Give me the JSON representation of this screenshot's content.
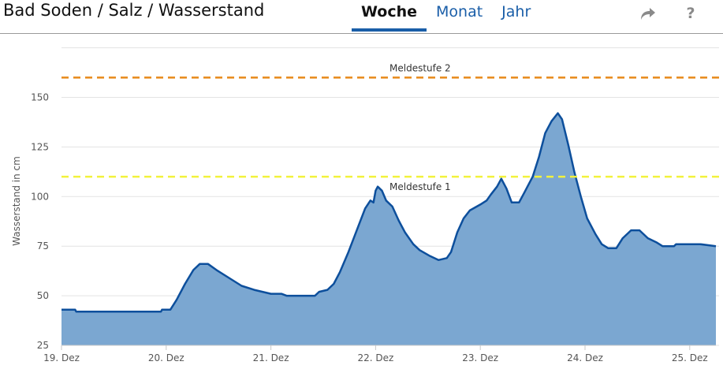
{
  "header": {
    "title": "Bad Soden / Salz / Wasserstand",
    "tabs": [
      {
        "label": "Woche",
        "active": true
      },
      {
        "label": "Monat",
        "active": false
      },
      {
        "label": "Jahr",
        "active": false
      }
    ],
    "share_icon": "share-arrow-icon",
    "help_label": "?"
  },
  "colors": {
    "accent": "#1a5ea8",
    "area_fill": "#7ba7d1",
    "line": "#0d4f9c",
    "meldestufe_1": "#f2f23c",
    "meldestufe_2": "#e88a1a"
  },
  "chart_data": {
    "type": "area",
    "title": "",
    "xlabel": "",
    "ylabel": "Wasserstand in cm",
    "ylim": [
      25,
      165
    ],
    "yticks": [
      25,
      50,
      75,
      100,
      125,
      150
    ],
    "xlim": [
      0,
      6.25
    ],
    "xticks": [
      {
        "x": 0,
        "label": "19. Dez"
      },
      {
        "x": 1,
        "label": "20. Dez"
      },
      {
        "x": 2,
        "label": "21. Dez"
      },
      {
        "x": 3,
        "label": "22. Dez"
      },
      {
        "x": 4,
        "label": "23. Dez"
      },
      {
        "x": 5,
        "label": "24. Dez"
      },
      {
        "x": 6,
        "label": "25. Dez"
      }
    ],
    "grid": true,
    "thresholds": [
      {
        "name": "Meldestufe 1",
        "value": 110
      },
      {
        "name": "Meldestufe 2",
        "value": 160
      }
    ],
    "series": [
      {
        "points": [
          [
            0,
            43
          ],
          [
            0.13,
            43
          ],
          [
            0.14,
            42
          ],
          [
            0.5,
            42
          ],
          [
            0.95,
            42
          ],
          [
            0.96,
            43
          ],
          [
            1.04,
            43
          ],
          [
            1.1,
            48
          ],
          [
            1.18,
            56
          ],
          [
            1.26,
            63
          ],
          [
            1.32,
            66
          ],
          [
            1.4,
            66
          ],
          [
            1.48,
            63
          ],
          [
            1.6,
            59
          ],
          [
            1.72,
            55
          ],
          [
            1.84,
            53
          ],
          [
            2.0,
            51
          ],
          [
            2.1,
            51
          ],
          [
            2.15,
            50
          ],
          [
            2.3,
            50
          ],
          [
            2.42,
            50
          ],
          [
            2.46,
            52
          ],
          [
            2.54,
            53
          ],
          [
            2.6,
            56
          ],
          [
            2.66,
            62
          ],
          [
            2.74,
            72
          ],
          [
            2.82,
            83
          ],
          [
            2.9,
            94
          ],
          [
            2.95,
            98
          ],
          [
            2.98,
            97
          ],
          [
            3.0,
            103
          ],
          [
            3.02,
            105
          ],
          [
            3.06,
            103
          ],
          [
            3.1,
            98
          ],
          [
            3.16,
            95
          ],
          [
            3.22,
            88
          ],
          [
            3.28,
            82
          ],
          [
            3.36,
            76
          ],
          [
            3.42,
            73
          ],
          [
            3.52,
            70
          ],
          [
            3.6,
            68
          ],
          [
            3.68,
            69
          ],
          [
            3.72,
            72
          ],
          [
            3.78,
            82
          ],
          [
            3.84,
            89
          ],
          [
            3.9,
            93
          ],
          [
            4.0,
            96
          ],
          [
            4.06,
            98
          ],
          [
            4.1,
            101
          ],
          [
            4.16,
            105
          ],
          [
            4.2,
            109
          ],
          [
            4.25,
            104
          ],
          [
            4.3,
            97
          ],
          [
            4.37,
            97
          ],
          [
            4.42,
            102
          ],
          [
            4.5,
            110
          ],
          [
            4.56,
            120
          ],
          [
            4.62,
            132
          ],
          [
            4.68,
            138
          ],
          [
            4.74,
            142
          ],
          [
            4.78,
            139
          ],
          [
            4.84,
            126
          ],
          [
            4.9,
            112
          ],
          [
            4.96,
            100
          ],
          [
            5.02,
            89
          ],
          [
            5.1,
            81
          ],
          [
            5.16,
            76
          ],
          [
            5.22,
            74
          ],
          [
            5.3,
            74
          ],
          [
            5.36,
            79
          ],
          [
            5.44,
            83
          ],
          [
            5.52,
            83
          ],
          [
            5.6,
            79
          ],
          [
            5.68,
            77
          ],
          [
            5.74,
            75
          ],
          [
            5.85,
            75
          ],
          [
            5.87,
            76
          ],
          [
            6.1,
            76
          ],
          [
            6.25,
            75
          ]
        ]
      }
    ]
  }
}
